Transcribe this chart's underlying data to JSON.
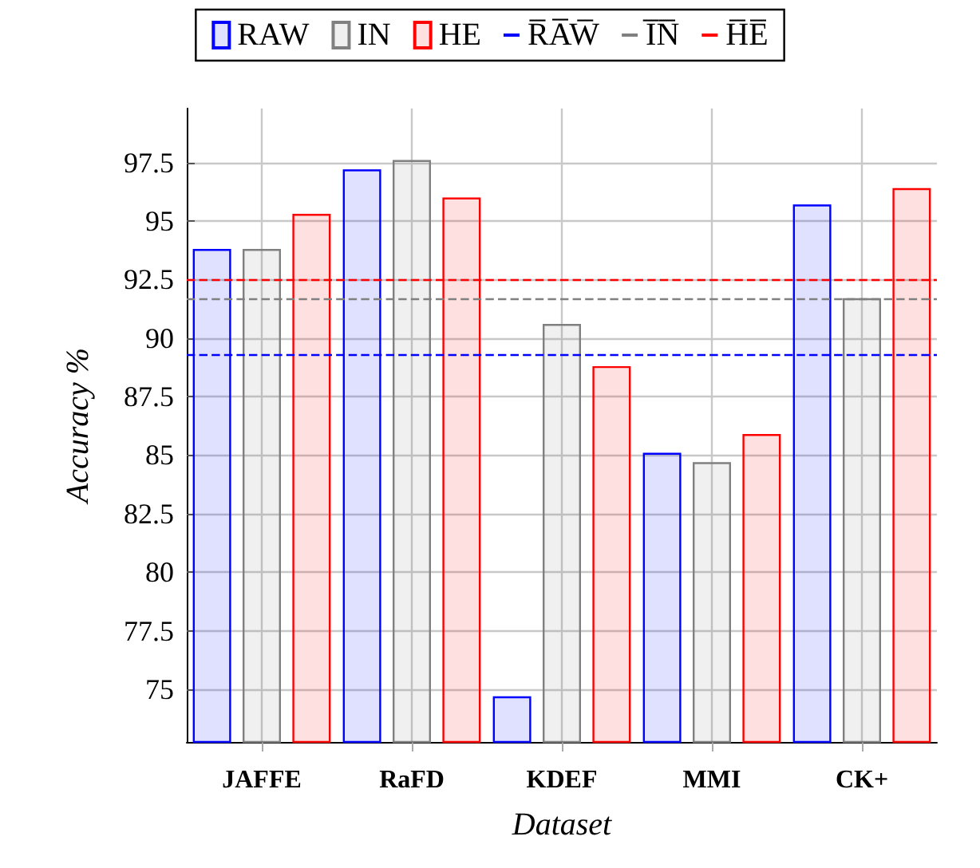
{
  "chart_data": {
    "type": "bar",
    "xlabel": "Dataset",
    "ylabel": "Accuracy %",
    "categories": [
      "JAFFE",
      "RaFD",
      "KDEF",
      "MMI",
      "CK+"
    ],
    "series": [
      {
        "name": "RAW",
        "color": "#0000ff",
        "values": [
          93.8,
          97.2,
          74.7,
          85.1,
          95.7
        ]
      },
      {
        "name": "IN",
        "color": "#808080",
        "values": [
          93.8,
          97.6,
          90.6,
          84.7,
          91.7
        ]
      },
      {
        "name": "HE",
        "color": "#ff0000",
        "values": [
          95.3,
          96.0,
          88.8,
          85.9,
          96.4
        ]
      }
    ],
    "ref_lines": [
      {
        "axis": "y",
        "value": 89.3,
        "label": "R̅A̅W̅",
        "color": "#0000ff",
        "line_style": "dashed"
      },
      {
        "axis": "y",
        "value": 91.7,
        "label": "I̅N̅",
        "color": "#808080",
        "line_style": "dashed"
      },
      {
        "axis": "y",
        "value": 92.5,
        "label": "H̅E̅",
        "color": "#ff0000",
        "line_style": "dashed"
      }
    ],
    "ylim": [
      72.75,
      99.8
    ],
    "yticks": [
      75,
      77.5,
      80,
      82.5,
      85,
      87.5,
      90,
      92.5,
      95,
      97.5
    ],
    "grid": true,
    "legend": "top"
  }
}
